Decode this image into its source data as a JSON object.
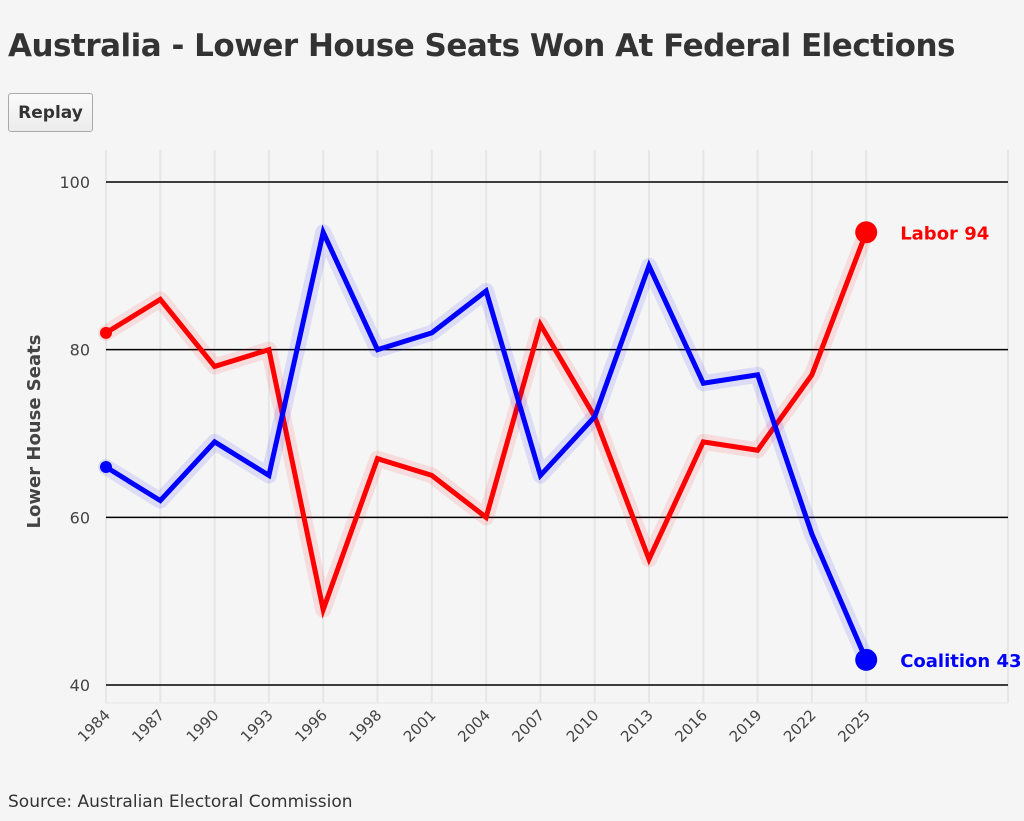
{
  "title": "Australia - Lower House Seats Won At Federal Elections",
  "replay_label": "Replay",
  "source": "Source: Australian Electoral Commission",
  "chart_data": {
    "type": "line",
    "title": "Australia - Lower House Seats Won At Federal Elections",
    "xlabel": "",
    "ylabel": "Lower House Seats",
    "x": [
      "1984",
      "1987",
      "1990",
      "1993",
      "1996",
      "1998",
      "2001",
      "2004",
      "2007",
      "2010",
      "2013",
      "2016",
      "2019",
      "2022",
      "2025"
    ],
    "ylim": [
      40,
      100
    ],
    "yticks": [
      40,
      60,
      80,
      100
    ],
    "grid": true,
    "series": [
      {
        "name": "Labor",
        "color": "#ff0000",
        "end_label": "Labor 94",
        "values": [
          82,
          86,
          78,
          80,
          49,
          67,
          65,
          60,
          83,
          72,
          55,
          69,
          68,
          77,
          94
        ]
      },
      {
        "name": "Coalition",
        "color": "#0000ff",
        "end_label": "Coalition 43",
        "values": [
          66,
          62,
          69,
          65,
          94,
          80,
          82,
          87,
          65,
          72,
          90,
          76,
          77,
          58,
          43
        ]
      }
    ]
  }
}
